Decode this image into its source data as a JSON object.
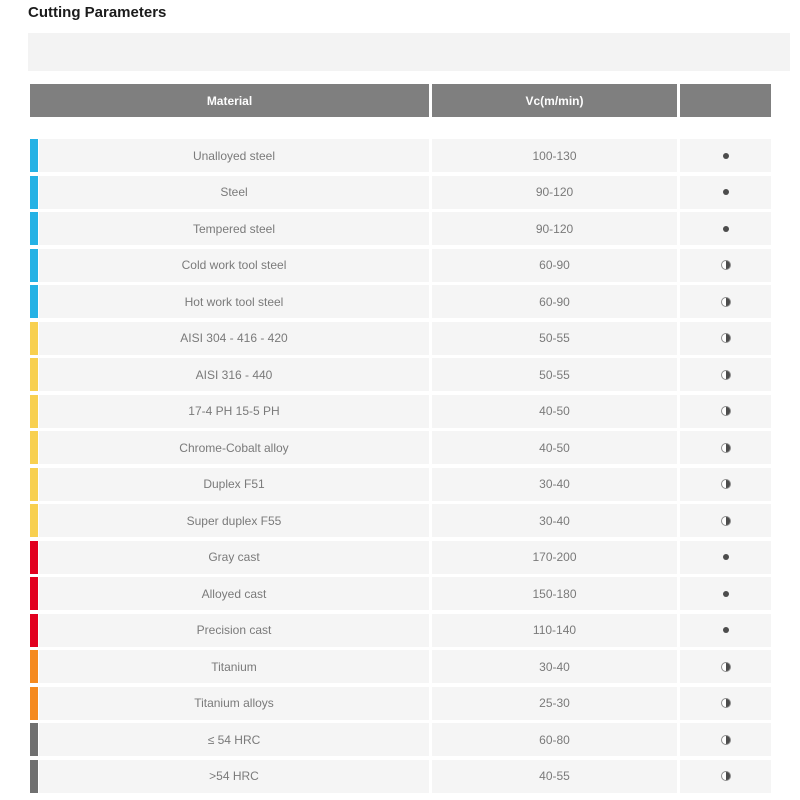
{
  "page": {
    "title": "Cutting Parameters"
  },
  "group_colors": {
    "steel": "#25b2e5",
    "stainless": "#f8d04f",
    "cast": "#e2001f",
    "titanium": "#f58a1f",
    "hardened": "#707070"
  },
  "header_color": "#7f7f7f",
  "table": {
    "headers": [
      "Material",
      "Vc(m/min)",
      ""
    ],
    "rows": [
      {
        "material": "Unalloyed steel",
        "vc": "100-130",
        "group": "steel",
        "icon": "filled-circle"
      },
      {
        "material": "Steel",
        "vc": "90-120",
        "group": "steel",
        "icon": "filled-circle"
      },
      {
        "material": "Tempered steel",
        "vc": "90-120",
        "group": "steel",
        "icon": "filled-circle"
      },
      {
        "material": "Cold work tool steel",
        "vc": "60-90",
        "group": "steel",
        "icon": "half-circle"
      },
      {
        "material": "Hot work tool steel",
        "vc": "60-90",
        "group": "steel",
        "icon": "half-circle"
      },
      {
        "material": "AISI 304 - 416 - 420",
        "vc": "50-55",
        "group": "stainless",
        "icon": "half-circle"
      },
      {
        "material": "AISI 316 - 440",
        "vc": "50-55",
        "group": "stainless",
        "icon": "half-circle"
      },
      {
        "material": "17-4 PH 15-5 PH",
        "vc": "40-50",
        "group": "stainless",
        "icon": "half-circle"
      },
      {
        "material": "Chrome-Cobalt alloy",
        "vc": "40-50",
        "group": "stainless",
        "icon": "half-circle"
      },
      {
        "material": "Duplex F51",
        "vc": "30-40",
        "group": "stainless",
        "icon": "half-circle"
      },
      {
        "material": "Super duplex F55",
        "vc": "30-40",
        "group": "stainless",
        "icon": "half-circle"
      },
      {
        "material": "Gray cast",
        "vc": "170-200",
        "group": "cast",
        "icon": "filled-circle"
      },
      {
        "material": "Alloyed cast",
        "vc": "150-180",
        "group": "cast",
        "icon": "filled-circle"
      },
      {
        "material": "Precision cast",
        "vc": "110-140",
        "group": "cast",
        "icon": "filled-circle"
      },
      {
        "material": "Titanium",
        "vc": "30-40",
        "group": "titanium",
        "icon": "half-circle"
      },
      {
        "material": "Titanium alloys",
        "vc": "25-30",
        "group": "titanium",
        "icon": "half-circle"
      },
      {
        "material": "≤ 54 HRC",
        "vc": "60-80",
        "group": "hardened",
        "icon": "half-circle"
      },
      {
        "material": ">54 HRC",
        "vc": "40-55",
        "group": "hardened",
        "icon": "half-circle"
      }
    ]
  }
}
